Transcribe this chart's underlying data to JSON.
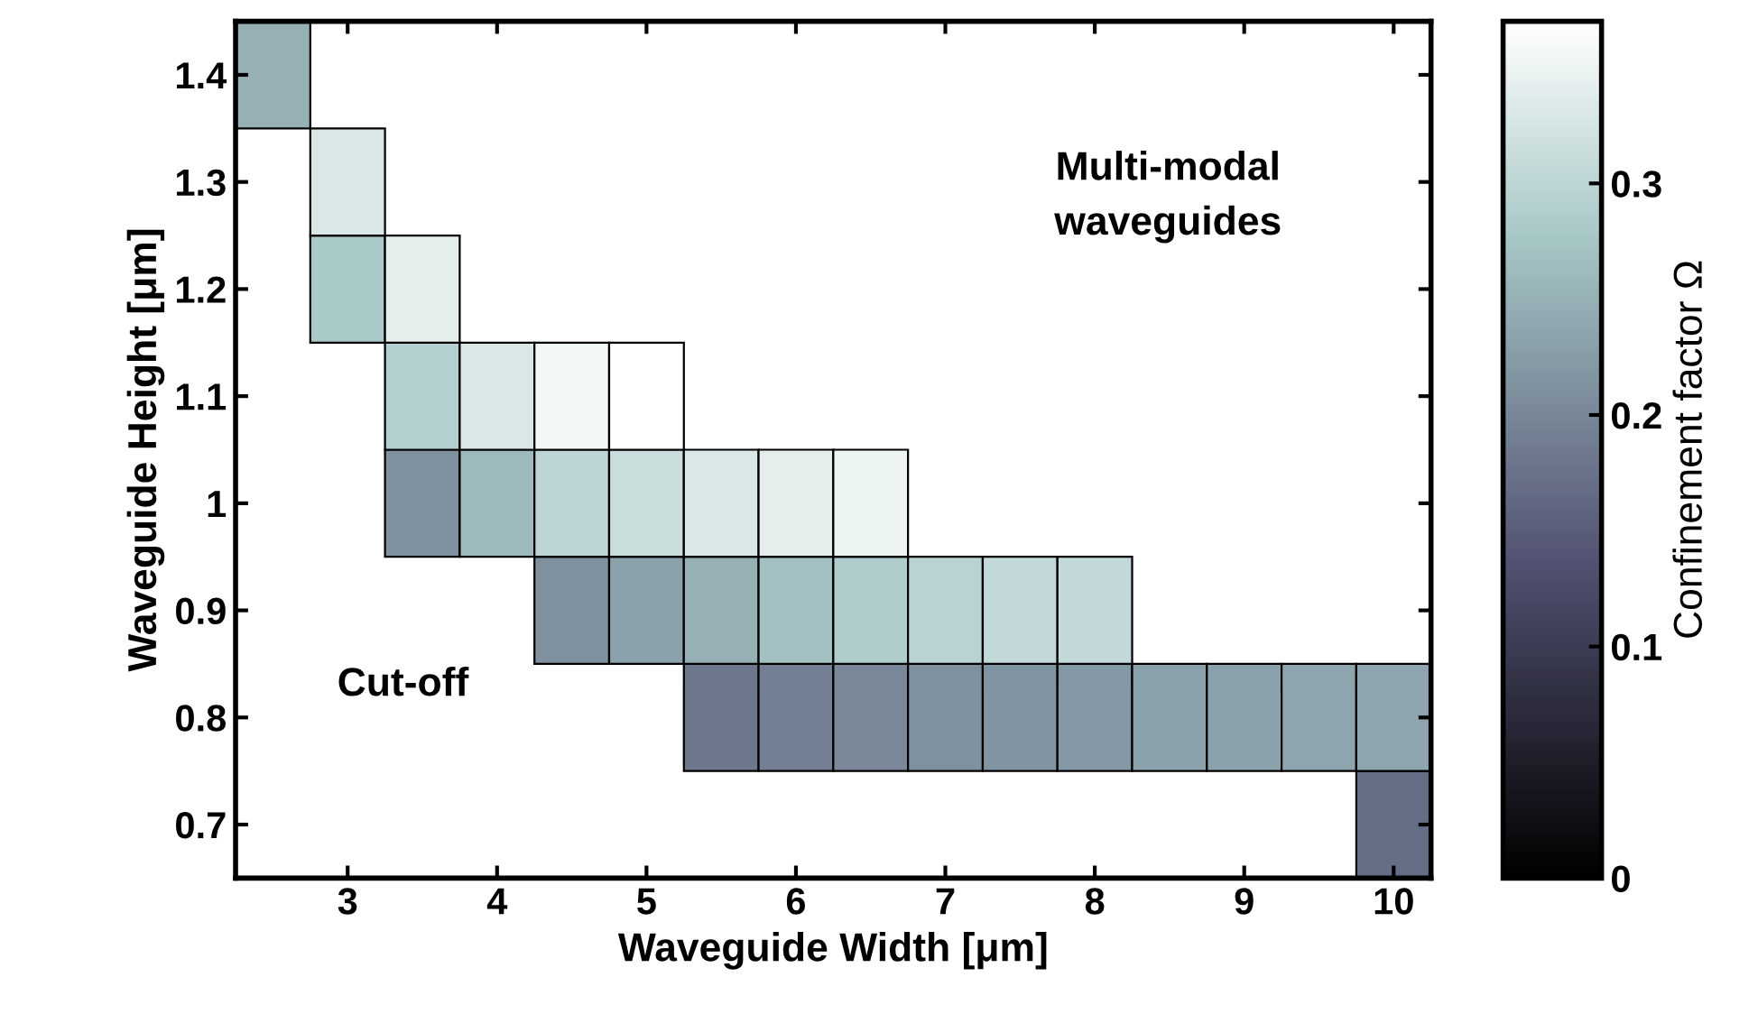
{
  "chart_data": {
    "type": "heatmap",
    "xlabel": "Waveguide Width [μm]",
    "ylabel": "Waveguide Height [μm]",
    "clabel": "Confinement factor Ω",
    "x": [
      2.5,
      3,
      3.5,
      4,
      4.5,
      5,
      5.5,
      6,
      6.5,
      7,
      7.5,
      8,
      8.5,
      9,
      9.5,
      10
    ],
    "xlim": [
      2.25,
      10.25
    ],
    "xticks": [
      3,
      4,
      5,
      6,
      7,
      8,
      9,
      10
    ],
    "y_categories": [
      "1.4",
      "1.3",
      "1.2",
      "1.1",
      "1",
      "0.9",
      "0.8",
      "0.7"
    ],
    "cells": [
      [
        0.25,
        null,
        null,
        null,
        null,
        null,
        null,
        null,
        null,
        null,
        null,
        null,
        null,
        null,
        null,
        null
      ],
      [
        null,
        0.33,
        null,
        null,
        null,
        null,
        null,
        null,
        null,
        null,
        null,
        null,
        null,
        null,
        null,
        null
      ],
      [
        null,
        0.28,
        0.34,
        null,
        null,
        null,
        null,
        null,
        null,
        null,
        null,
        null,
        null,
        null,
        null,
        null
      ],
      [
        null,
        null,
        0.29,
        0.33,
        0.355,
        0.37,
        null,
        null,
        null,
        null,
        null,
        null,
        null,
        null,
        null,
        null
      ],
      [
        null,
        null,
        0.21,
        0.26,
        0.3,
        0.315,
        0.33,
        0.34,
        0.35,
        null,
        null,
        null,
        null,
        null,
        null,
        null
      ],
      [
        null,
        null,
        null,
        null,
        0.21,
        0.23,
        0.25,
        0.27,
        0.285,
        0.295,
        0.305,
        0.305,
        null,
        null,
        null,
        null
      ],
      [
        null,
        null,
        null,
        null,
        null,
        null,
        0.18,
        0.19,
        0.2,
        0.21,
        0.215,
        0.22,
        0.23,
        0.23,
        0.235,
        0.235
      ],
      [
        null,
        null,
        null,
        null,
        null,
        null,
        null,
        null,
        null,
        null,
        null,
        null,
        null,
        null,
        null,
        0.17
      ]
    ],
    "clim": [
      0,
      0.37
    ],
    "cticks": [
      0,
      0.1,
      0.2,
      0.3
    ],
    "annotations": [
      "Multi-modal\nwaveguides",
      "Cut-off"
    ]
  }
}
